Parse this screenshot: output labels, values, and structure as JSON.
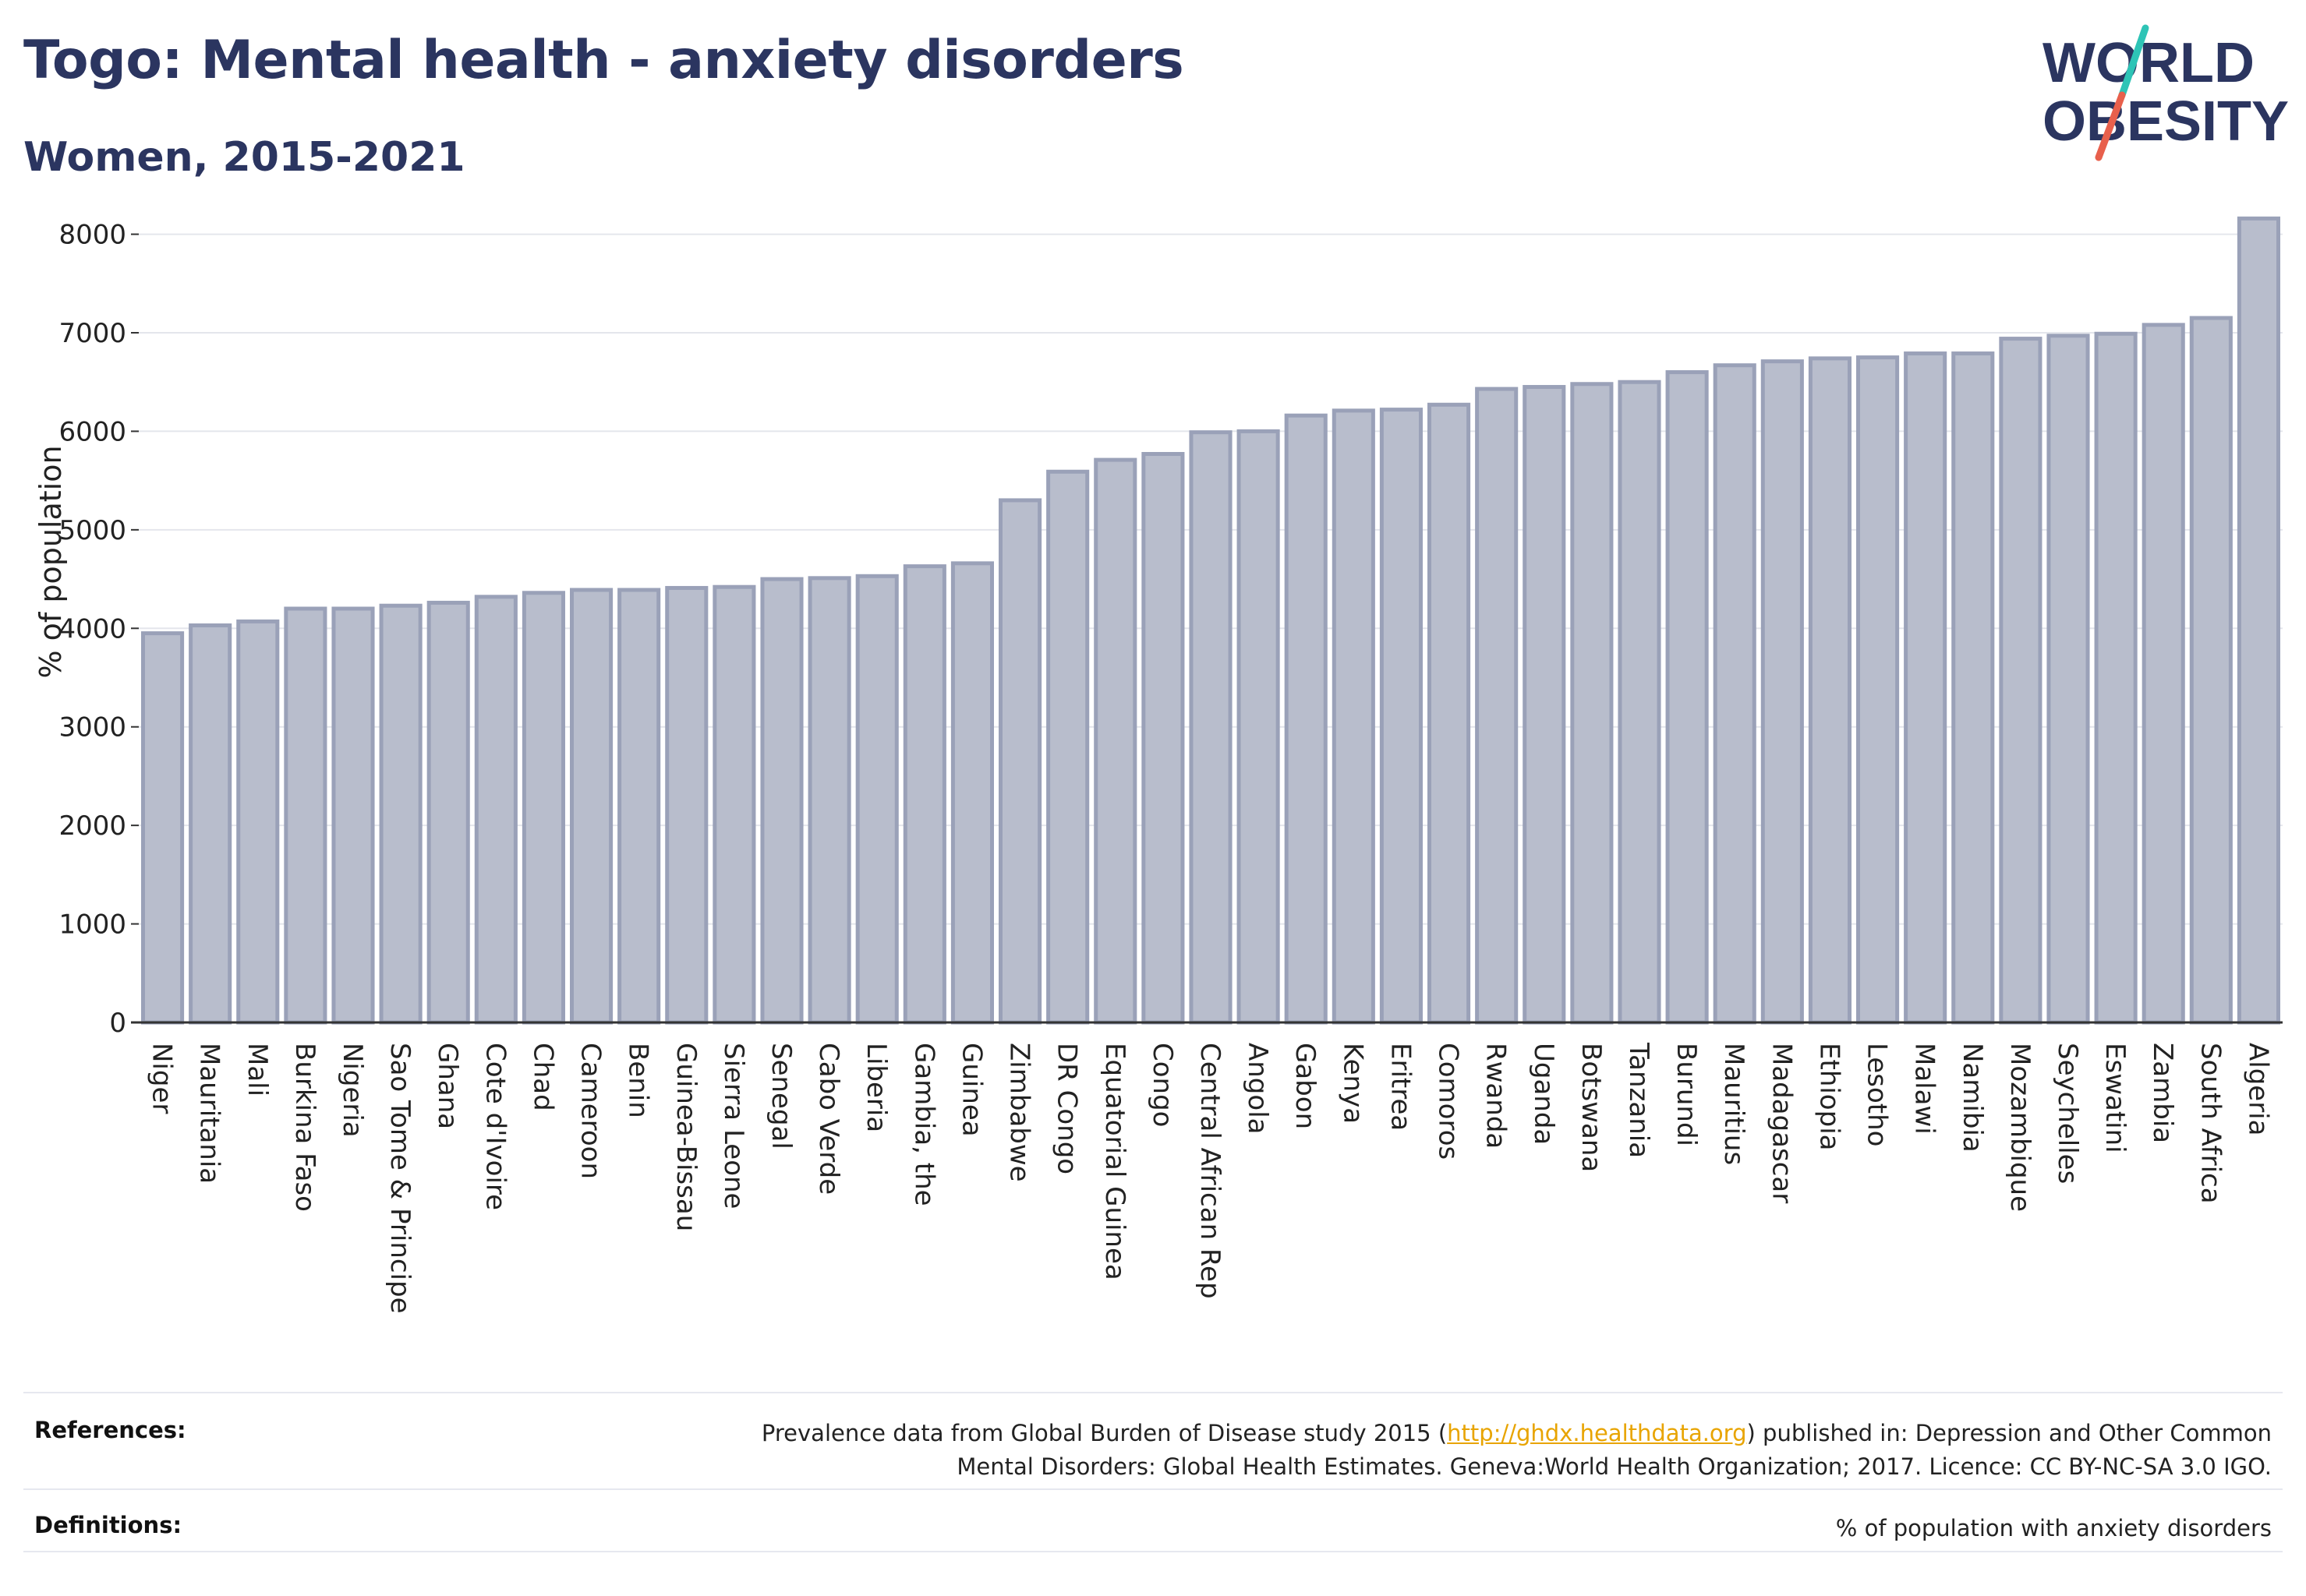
{
  "header": {
    "title": "Togo: Mental health - anxiety disorders",
    "subtitle": "Women, 2015-2021"
  },
  "logo": {
    "line1": "WORLD",
    "line2": "OBESITY",
    "colors": {
      "text": "#2b3560",
      "slash_teal": "#2ec4b6",
      "slash_red": "#e8604c"
    }
  },
  "colors": {
    "bar_fill": "#b8bdcc",
    "bar_stroke": "#9aa1b8",
    "grid": "#e4e6ec",
    "title": "#2b3560",
    "link": "#e8a400"
  },
  "chart_data": {
    "type": "bar",
    "ylabel": "% of population",
    "xlabel": "",
    "ylim": [
      0,
      8400
    ],
    "yticks": [
      0,
      1000,
      2000,
      3000,
      4000,
      5000,
      6000,
      7000,
      8000
    ],
    "grid": true,
    "categories": [
      "Niger",
      "Mauritania",
      "Mali",
      "Burkina Faso",
      "Nigeria",
      "Sao Tome & Principe",
      "Ghana",
      "Cote d'Ivoire",
      "Chad",
      "Cameroon",
      "Benin",
      "Guinea-Bissau",
      "Sierra Leone",
      "Senegal",
      "Cabo Verde",
      "Liberia",
      "Gambia, the",
      "Guinea",
      "Zimbabwe",
      "DR Congo",
      "Equatorial Guinea",
      "Congo",
      "Central African Rep",
      "Angola",
      "Gabon",
      "Kenya",
      "Eritrea",
      "Comoros",
      "Rwanda",
      "Uganda",
      "Botswana",
      "Tanzania",
      "Burundi",
      "Mauritius",
      "Madagascar",
      "Ethiopia",
      "Lesotho",
      "Malawi",
      "Namibia",
      "Mozambique",
      "Seychelles",
      "Eswatini",
      "Zambia",
      "South Africa",
      "Algeria"
    ],
    "values": [
      3950,
      4030,
      4070,
      4200,
      4200,
      4230,
      4260,
      4320,
      4360,
      4390,
      4390,
      4410,
      4420,
      4500,
      4510,
      4530,
      4630,
      4660,
      5300,
      5590,
      5710,
      5770,
      5990,
      6000,
      6160,
      6210,
      6220,
      6270,
      6430,
      6450,
      6480,
      6500,
      6600,
      6670,
      6710,
      6740,
      6750,
      6790,
      6790,
      6940,
      6970,
      6990,
      7080,
      7150,
      8160
    ]
  },
  "footer": {
    "references_label": "References:",
    "references_text_before": "Prevalence data from Global Burden of Disease study 2015 (",
    "references_link": "http://ghdx.healthdata.org",
    "references_text_after": ") published in: Depression and Other Common",
    "references_text_line2": "Mental Disorders: Global Health Estimates. Geneva:World Health Organization; 2017. Licence: CC BY-NC-SA 3.0 IGO.",
    "definitions_label": "Definitions:",
    "definitions_text": "% of population with anxiety disorders"
  }
}
